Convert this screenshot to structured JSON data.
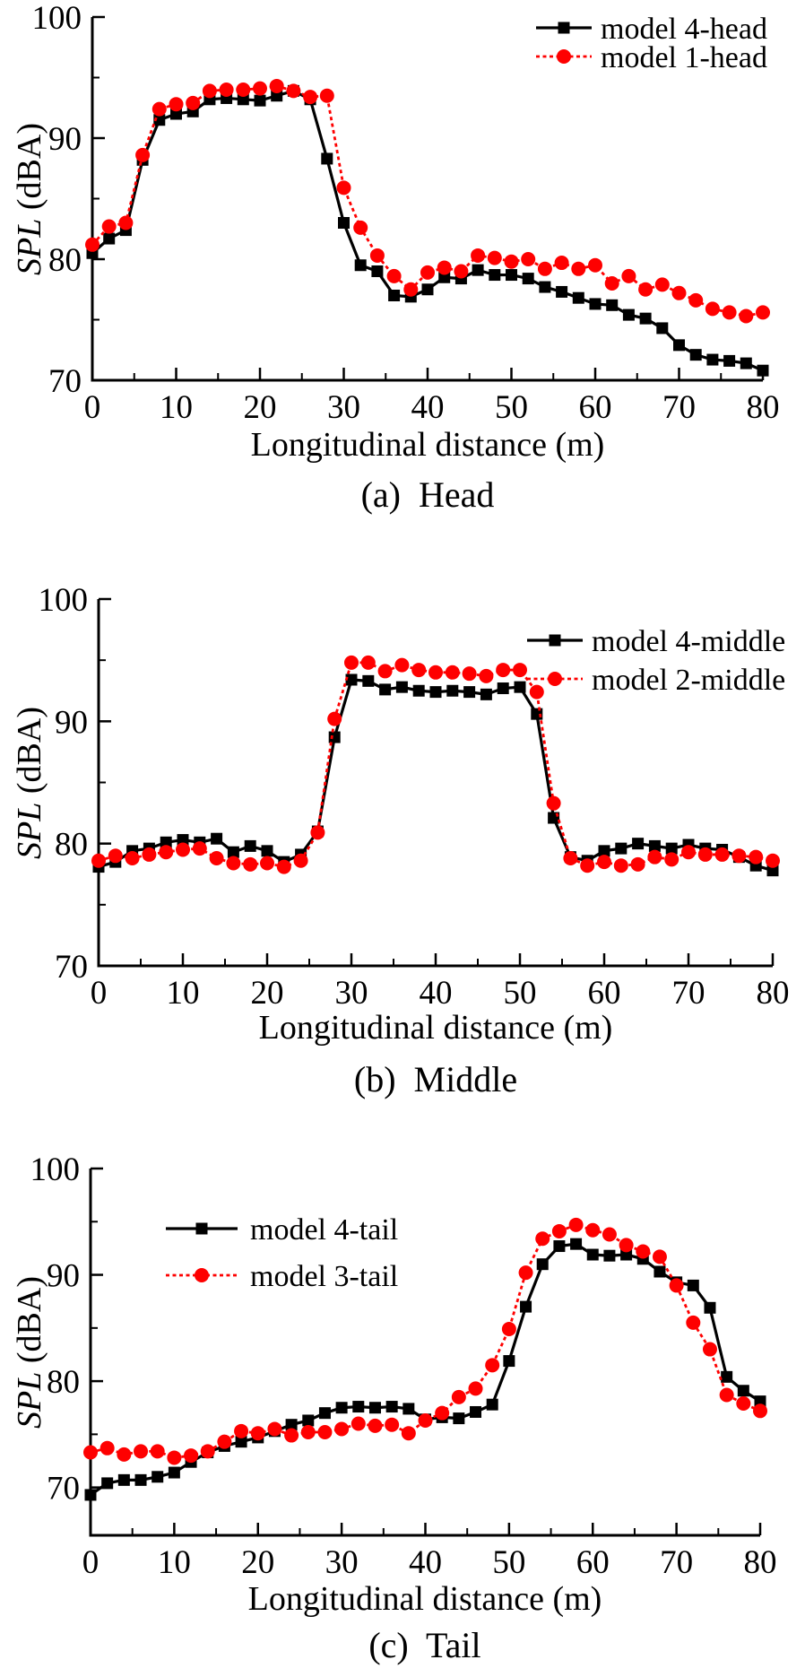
{
  "figure": {
    "ylabel_italic": "SPL",
    "ylabel_unit": " (dBA)",
    "colors": {
      "black_series": "#000000",
      "red_series": "#fe0000",
      "background": "#ffffff"
    }
  },
  "chart_data": [
    {
      "type": "line",
      "panel": "a",
      "caption": "(a)  Head",
      "xlabel": "Longitudinal distance (m)",
      "ylabel": "SPL (dBA)",
      "xlim": [
        0,
        80
      ],
      "ylim": [
        70,
        100
      ],
      "xticks": [
        0,
        10,
        20,
        30,
        40,
        50,
        60,
        70,
        80
      ],
      "yticks": [
        70,
        80,
        90,
        100
      ],
      "grid": false,
      "legend_position": "top-right",
      "x": [
        0,
        2,
        4,
        6,
        8,
        10,
        12,
        14,
        16,
        18,
        20,
        22,
        24,
        26,
        28,
        30,
        32,
        34,
        36,
        38,
        40,
        42,
        44,
        46,
        48,
        50,
        52,
        54,
        56,
        58,
        60,
        62,
        64,
        66,
        68,
        70,
        72,
        74,
        76,
        78,
        80
      ],
      "series": [
        {
          "name": "model 4-head",
          "color": "#000000",
          "marker": "square",
          "line": "solid",
          "values": [
            80.5,
            81.7,
            82.4,
            88.2,
            91.5,
            92.0,
            92.2,
            93.2,
            93.3,
            93.2,
            93.1,
            93.5,
            93.9,
            93.2,
            88.3,
            83.0,
            79.5,
            79.0,
            77.0,
            76.9,
            77.5,
            78.5,
            78.4,
            79.1,
            78.7,
            78.7,
            78.4,
            77.7,
            77.3,
            76.8,
            76.3,
            76.2,
            75.4,
            75.1,
            74.3,
            72.9,
            72.1,
            71.7,
            71.6,
            71.4,
            70.8
          ]
        },
        {
          "name": "model 1-head",
          "color": "#fe0000",
          "marker": "circle",
          "line": "dashed",
          "values": [
            81.2,
            82.7,
            83.0,
            88.6,
            92.4,
            92.8,
            92.9,
            93.9,
            94.0,
            94.0,
            94.1,
            94.3,
            93.9,
            93.4,
            93.5,
            85.9,
            82.6,
            80.3,
            78.6,
            77.5,
            78.9,
            79.3,
            79.0,
            80.3,
            80.1,
            79.8,
            80.0,
            79.2,
            79.7,
            79.2,
            79.5,
            78.0,
            78.6,
            77.5,
            77.9,
            77.2,
            76.6,
            75.9,
            75.6,
            75.3,
            75.6
          ]
        }
      ]
    },
    {
      "type": "line",
      "panel": "b",
      "caption": "(b)  Middle",
      "xlabel": "Longitudinal distance (m)",
      "ylabel": "SPL (dBA)",
      "xlim": [
        0,
        80
      ],
      "ylim": [
        70,
        100
      ],
      "xticks": [
        0,
        10,
        20,
        30,
        40,
        50,
        60,
        70,
        80
      ],
      "yticks": [
        70,
        80,
        90,
        100
      ],
      "grid": false,
      "legend_position": "top-right",
      "x": [
        0,
        2,
        4,
        6,
        8,
        10,
        12,
        14,
        16,
        18,
        20,
        22,
        24,
        26,
        28,
        30,
        32,
        34,
        36,
        38,
        40,
        42,
        44,
        46,
        48,
        50,
        52,
        54,
        56,
        58,
        60,
        62,
        64,
        66,
        68,
        70,
        72,
        74,
        76,
        78,
        80
      ],
      "series": [
        {
          "name": "model 4-middle",
          "color": "#000000",
          "marker": "square",
          "line": "solid",
          "values": [
            78.1,
            78.5,
            79.4,
            79.6,
            80.1,
            80.3,
            80.1,
            80.4,
            79.3,
            79.8,
            79.4,
            78.5,
            79.1,
            81.0,
            88.7,
            93.4,
            93.3,
            92.6,
            92.8,
            92.5,
            92.4,
            92.5,
            92.4,
            92.2,
            92.7,
            92.8,
            90.6,
            82.1,
            78.9,
            78.6,
            79.4,
            79.6,
            80.0,
            79.8,
            79.6,
            79.9,
            79.6,
            79.5,
            78.9,
            78.2,
            77.8
          ]
        },
        {
          "name": "model 2-middle",
          "color": "#fe0000",
          "marker": "circle",
          "line": "dashed",
          "values": [
            78.6,
            79.0,
            78.8,
            79.1,
            79.3,
            79.5,
            79.6,
            78.8,
            78.4,
            78.3,
            78.4,
            78.1,
            78.6,
            80.9,
            90.2,
            94.8,
            94.8,
            94.1,
            94.6,
            94.2,
            94.0,
            94.0,
            93.9,
            93.7,
            94.2,
            94.2,
            92.4,
            83.3,
            78.8,
            78.2,
            78.5,
            78.2,
            78.3,
            78.9,
            78.7,
            79.3,
            79.1,
            79.1,
            79.0,
            78.9,
            78.6
          ]
        }
      ]
    },
    {
      "type": "line",
      "panel": "c",
      "caption": "(c)  Tail",
      "xlabel": "Longitudinal distance (m)",
      "ylabel": "SPL (dBA)",
      "xlim": [
        0,
        80
      ],
      "ylim": [
        70,
        100
      ],
      "xticks": [
        0,
        10,
        20,
        30,
        40,
        50,
        60,
        70,
        80
      ],
      "yticks": [
        70,
        80,
        90,
        100
      ],
      "grid": false,
      "legend_position": "top-left",
      "x": [
        0,
        2,
        4,
        6,
        8,
        10,
        12,
        14,
        16,
        18,
        20,
        22,
        24,
        26,
        28,
        30,
        32,
        34,
        36,
        38,
        40,
        42,
        44,
        46,
        48,
        50,
        52,
        54,
        56,
        58,
        60,
        62,
        64,
        66,
        68,
        70,
        72,
        74,
        76,
        78,
        80
      ],
      "series": [
        {
          "name": "model 4-tail",
          "color": "#000000",
          "marker": "square",
          "line": "solid",
          "values": [
            69.3,
            70.4,
            70.7,
            70.7,
            71.0,
            71.4,
            72.4,
            73.3,
            73.9,
            74.3,
            74.7,
            75.3,
            75.9,
            76.3,
            77.0,
            77.5,
            77.6,
            77.5,
            77.6,
            77.4,
            76.4,
            76.6,
            76.5,
            77.1,
            77.8,
            81.9,
            87.0,
            91.0,
            92.7,
            92.9,
            91.9,
            91.8,
            91.9,
            91.5,
            90.3,
            89.3,
            89.0,
            86.9,
            80.4,
            79.1,
            78.1
          ]
        },
        {
          "name": "model 3-tail",
          "color": "#fe0000",
          "marker": "circle",
          "line": "dashed",
          "values": [
            73.3,
            73.7,
            73.1,
            73.4,
            73.4,
            72.8,
            73.0,
            73.4,
            74.3,
            75.3,
            75.1,
            75.5,
            74.9,
            75.2,
            75.2,
            75.5,
            76.0,
            75.8,
            75.9,
            75.1,
            76.3,
            77.0,
            78.5,
            79.3,
            81.5,
            84.9,
            90.2,
            93.4,
            94.1,
            94.7,
            94.2,
            93.8,
            92.8,
            92.2,
            91.7,
            89.0,
            85.5,
            83.0,
            78.7,
            77.9,
            77.2
          ]
        }
      ]
    }
  ]
}
